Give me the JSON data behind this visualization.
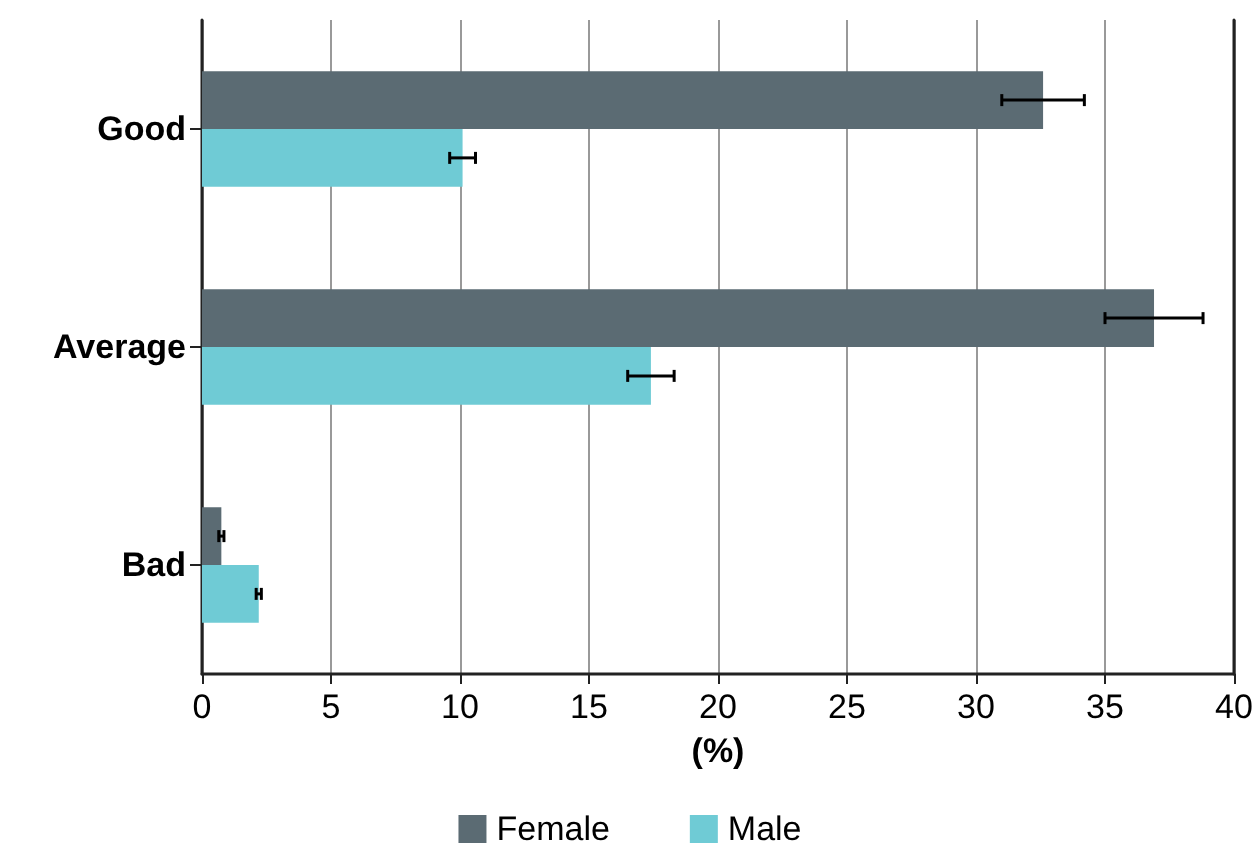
{
  "chart_data": {
    "type": "bar",
    "orientation": "horizontal",
    "xlabel": "(%)",
    "categories": [
      "Good",
      "Average",
      "Bad"
    ],
    "series": [
      {
        "name": "Female",
        "color": "#5b6b73",
        "values": [
          32.6,
          36.9,
          0.75
        ],
        "errors": [
          1.6,
          1.9,
          0.1
        ]
      },
      {
        "name": "Male",
        "color": "#6fcbd5",
        "values": [
          10.1,
          17.4,
          2.2
        ],
        "errors": [
          0.5,
          0.9,
          0.1
        ]
      }
    ],
    "xlim": [
      0,
      40
    ],
    "xticks": [
      0,
      5,
      10,
      15,
      20,
      25,
      30,
      35,
      40
    ],
    "grid": "x",
    "legend": "bottom"
  }
}
